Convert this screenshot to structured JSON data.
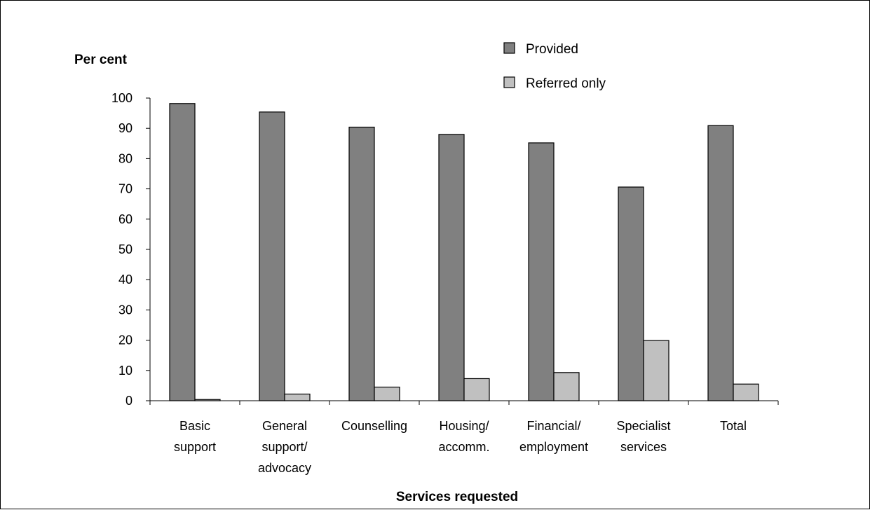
{
  "chart_data": {
    "type": "bar",
    "title": "",
    "xlabel": "Services requested",
    "ylabel": "Per cent",
    "ylim": [
      0,
      100
    ],
    "yticks": [
      0,
      10,
      20,
      30,
      40,
      50,
      60,
      70,
      80,
      90,
      100
    ],
    "grid": false,
    "legend_position": "top-right",
    "categories": [
      [
        "Basic",
        "support"
      ],
      [
        "General",
        "support/",
        "advocacy"
      ],
      [
        "Counselling"
      ],
      [
        "Housing/",
        "accomm."
      ],
      [
        "Financial/",
        "employment"
      ],
      [
        "Specialist",
        "services"
      ],
      [
        "Total"
      ]
    ],
    "series": [
      {
        "name": "Provided",
        "color": "#808080",
        "values": [
          98.2,
          95.4,
          90.4,
          88.0,
          85.2,
          70.6,
          90.9
        ]
      },
      {
        "name": "Referred only",
        "color": "#c0c0c0",
        "values": [
          0.4,
          2.2,
          4.5,
          7.3,
          9.3,
          19.9,
          5.5
        ]
      }
    ]
  }
}
